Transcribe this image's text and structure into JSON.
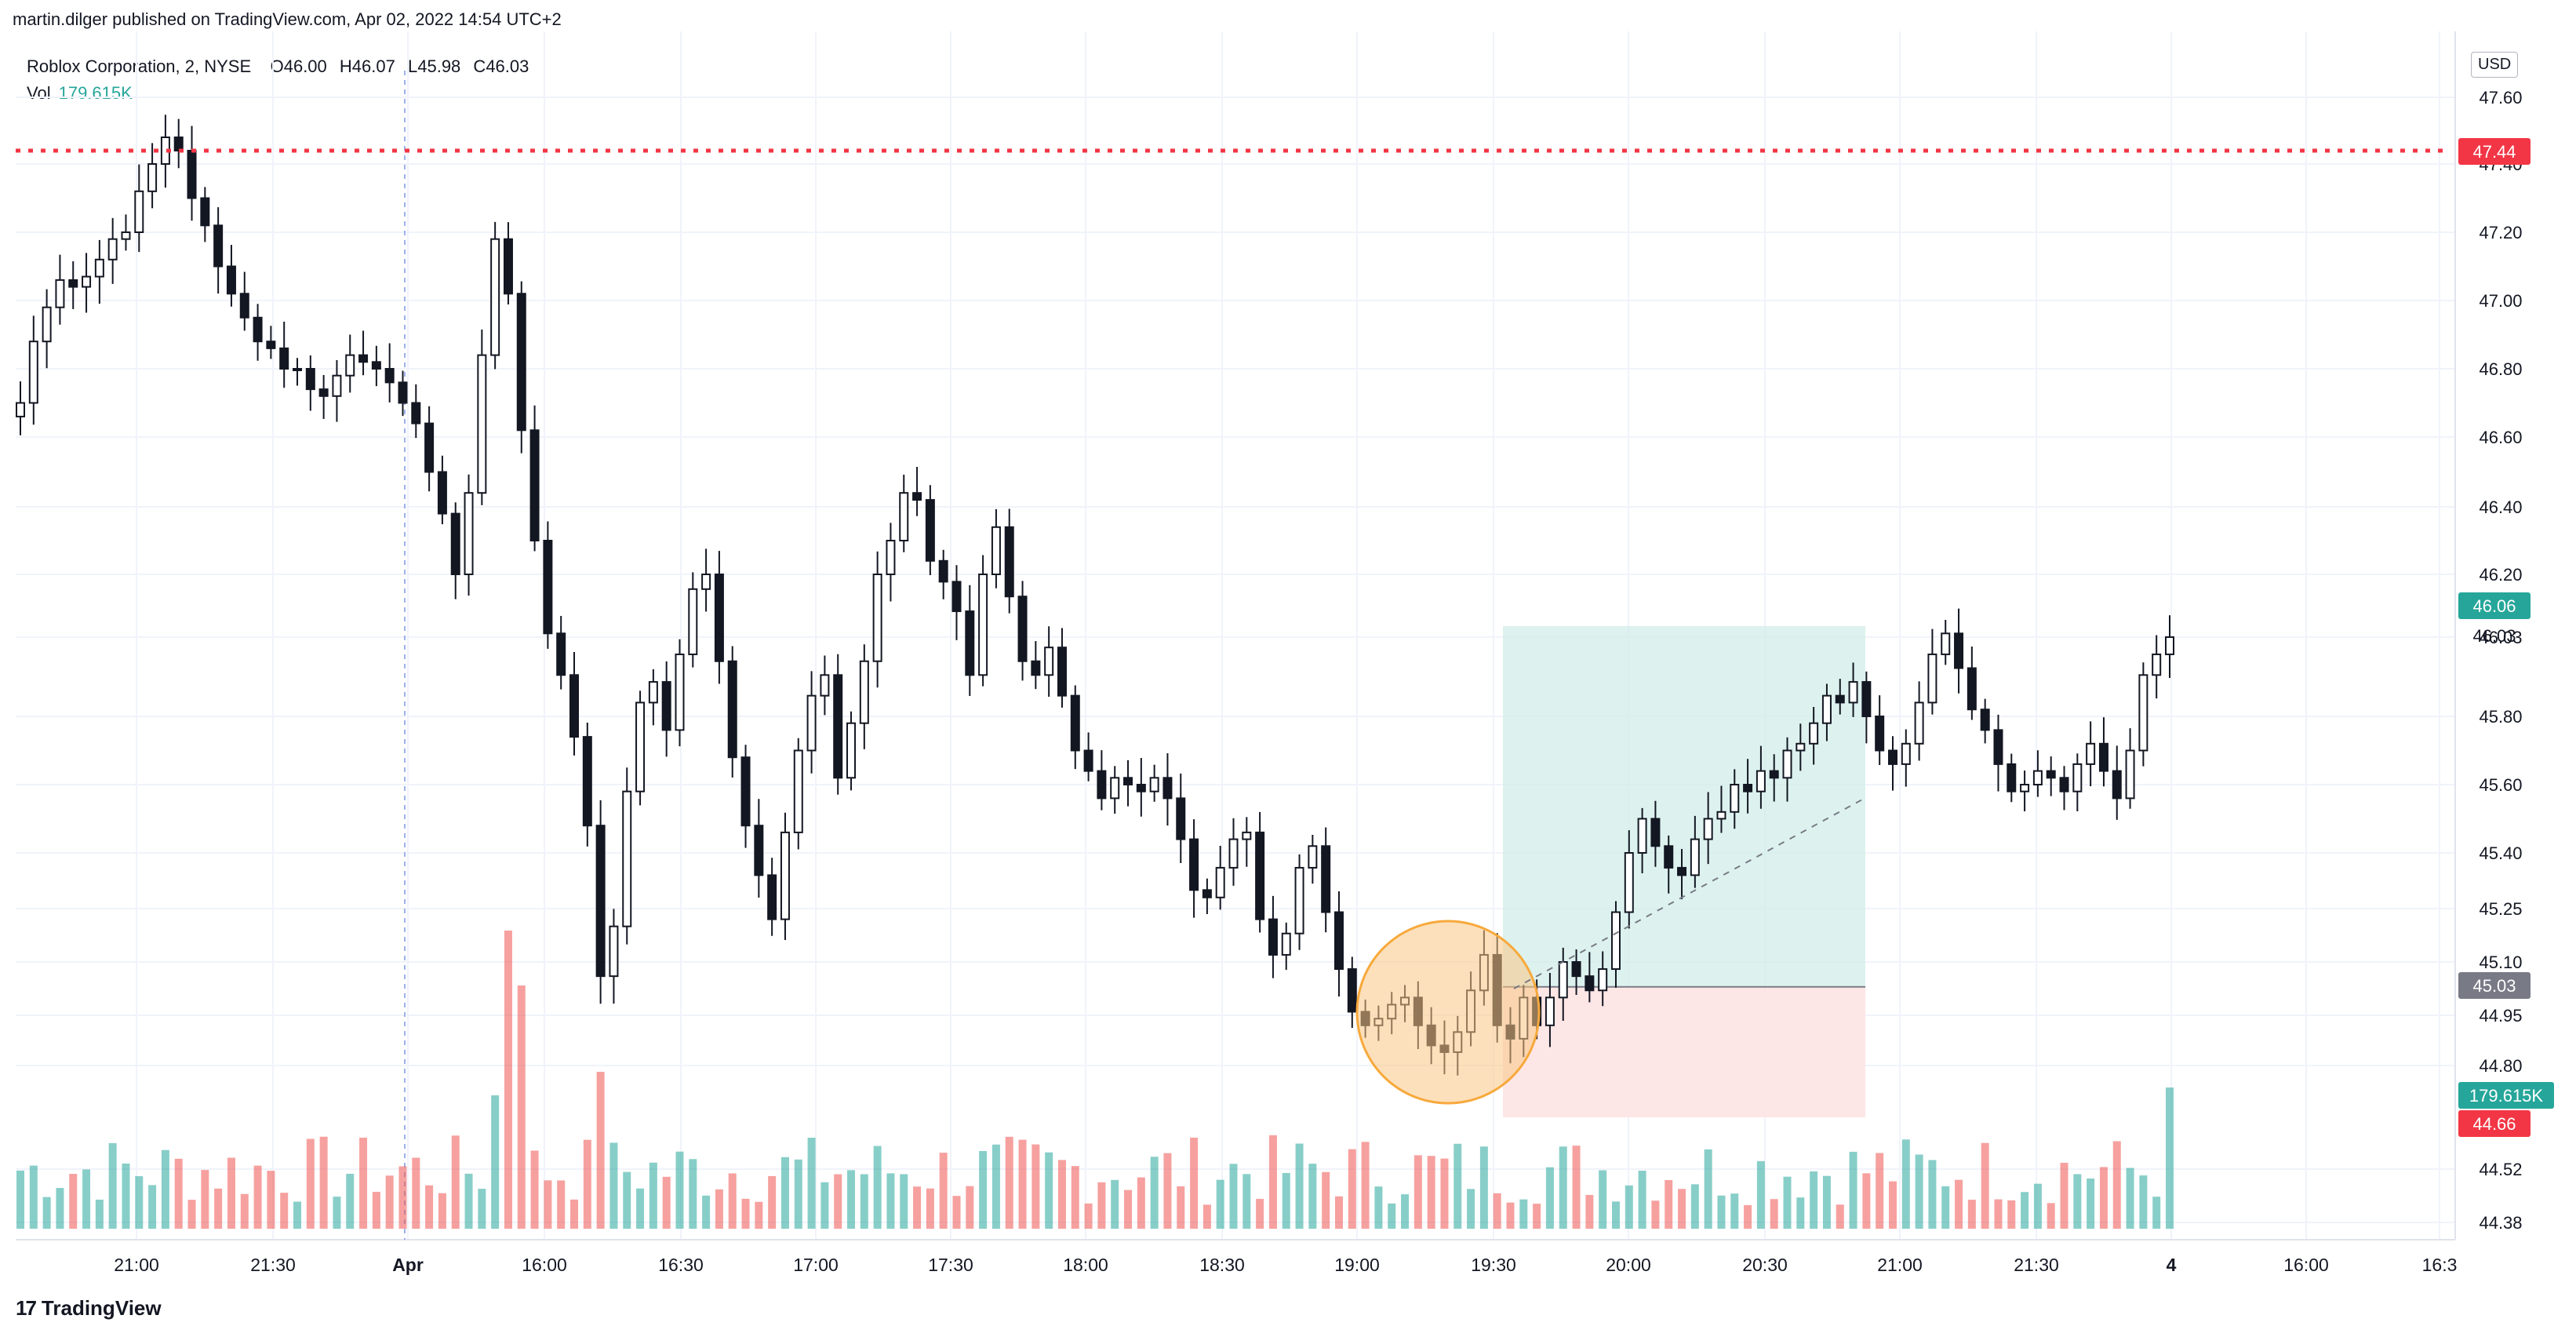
{
  "publish_line": "martin.dilger published on TradingView.com, Apr 02, 2022 14:54 UTC+2",
  "legend": {
    "symbol": "Roblox Corporation, 2, NYSE",
    "o_label": "O",
    "o": "46.00",
    "h_label": "H",
    "h": "46.07",
    "l_label": "L",
    "l": "45.98",
    "c_label": "C",
    "c": "46.03",
    "vol_label": "Vol",
    "vol": "179.615K"
  },
  "currency": "USD",
  "brand": {
    "logo": "17",
    "name": "TradingView"
  },
  "colors": {
    "up": "#26a69a",
    "down": "#ef5350",
    "alert": "#f23645",
    "target_zone": "#d1ede9",
    "stop_zone": "#fde3e3",
    "highlight": "#f7a93c"
  },
  "chart_data": {
    "type": "candlestick",
    "symbol": "RBLX",
    "interval": "2",
    "y_ticks": [
      44.38,
      44.52,
      44.8,
      44.95,
      45.1,
      45.25,
      45.4,
      45.6,
      45.8,
      46.03,
      46.2,
      46.4,
      46.6,
      46.8,
      47.0,
      47.2,
      47.4,
      47.6
    ],
    "y_tick_labels": [
      "44.38",
      "44.52",
      "44.80",
      "44.95",
      "45.10",
      "45.25",
      "45.40",
      "45.60",
      "45.80",
      "46.03",
      "46.20",
      "46.40",
      "46.60",
      "46.80",
      "47.00",
      "47.20",
      "47.40",
      "47.60"
    ],
    "x_tick_labels": [
      "21:00",
      "21:30",
      "Apr",
      "16:00",
      "16:30",
      "17:00",
      "17:30",
      "18:00",
      "18:30",
      "19:00",
      "19:30",
      "20:00",
      "20:30",
      "21:00",
      "21:30",
      "4",
      "16:00",
      "16:3"
    ],
    "price_badges": [
      {
        "label": "47.44",
        "value": 47.44,
        "color": "#f23645"
      },
      {
        "label": "46.06",
        "value": 46.06,
        "color": "#26a69a"
      },
      {
        "label": "46.03",
        "value": 46.03,
        "color": "none"
      },
      {
        "label": "45.03",
        "value": 45.03,
        "color": "#787b86"
      },
      {
        "label": "179.615K",
        "value": 44.7,
        "color": "#26a69a"
      },
      {
        "label": "44.66",
        "value": 44.66,
        "color": "#f23645"
      }
    ],
    "resistance_level": 47.44,
    "position": {
      "entry": 45.03,
      "target": 46.06,
      "stop": 44.66
    },
    "candles_close": [
      46.7,
      46.88,
      46.98,
      47.06,
      47.04,
      47.07,
      47.12,
      47.18,
      47.2,
      47.32,
      47.4,
      47.48,
      47.44,
      47.3,
      47.22,
      47.1,
      47.02,
      46.95,
      46.88,
      46.86,
      46.8,
      46.8,
      46.74,
      46.72,
      46.78,
      46.84,
      46.82,
      46.8,
      46.76,
      46.7,
      46.64,
      46.5,
      46.38,
      46.2,
      46.44,
      46.84,
      47.18,
      47.02,
      46.62,
      46.3,
      46.04,
      45.92,
      45.74,
      45.48,
      45.06,
      45.2,
      45.58,
      45.84,
      45.9,
      45.76,
      45.98,
      46.16,
      46.2,
      45.96,
      45.68,
      45.48,
      45.34,
      45.22,
      45.46,
      45.7,
      45.86,
      45.92,
      45.62,
      45.78,
      45.96,
      46.2,
      46.3,
      46.44,
      46.42,
      46.24,
      46.18,
      46.1,
      45.92,
      46.2,
      46.34,
      46.14,
      45.96,
      45.92,
      46.0,
      45.86,
      45.7,
      45.64,
      45.56,
      45.62,
      45.6,
      45.58,
      45.62,
      45.56,
      45.44,
      45.3,
      45.28,
      45.36,
      45.44,
      45.46,
      45.22,
      45.12,
      45.18,
      45.36,
      45.42,
      45.24,
      45.08,
      44.96,
      44.92,
      44.94,
      44.98,
      45.0,
      44.92,
      44.86,
      44.84,
      44.9,
      45.02,
      45.12,
      44.92,
      44.88,
      45.0,
      44.92,
      45.0,
      45.1,
      45.06,
      45.02,
      45.08,
      45.24,
      45.4,
      45.5,
      45.42,
      45.36,
      45.34,
      45.44,
      45.5,
      45.52,
      45.6,
      45.58,
      45.64,
      45.62,
      45.7,
      45.72,
      45.78,
      45.86,
      45.84,
      45.9,
      45.8,
      45.7,
      45.66,
      45.72,
      45.84,
      45.98,
      46.04,
      45.94,
      45.82,
      45.76,
      45.66,
      45.58,
      45.6,
      45.64,
      45.62,
      45.58,
      45.66,
      45.72,
      45.64,
      45.56,
      45.7,
      45.92,
      45.98,
      46.03
    ]
  }
}
